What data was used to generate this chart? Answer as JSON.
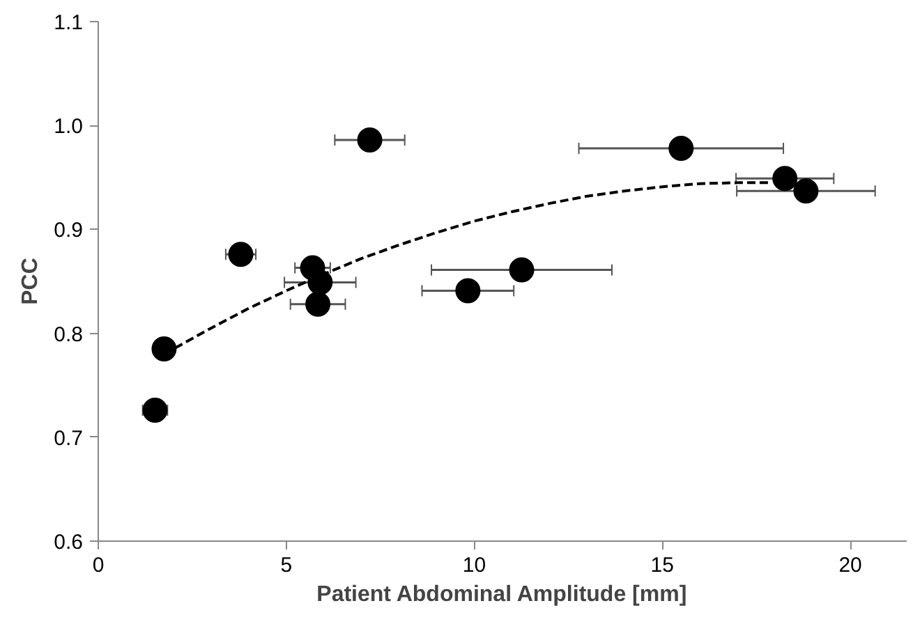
{
  "chart_data": {
    "type": "scatter",
    "xlabel": "Patient Abdominal Amplitude [mm]",
    "ylabel": "PCC",
    "xlim": [
      0,
      21.5
    ],
    "ylim": [
      0.6,
      1.1
    ],
    "xticks": [
      0,
      5,
      10,
      15,
      20
    ],
    "yticks": [
      {
        "value": 0.6,
        "label": "0.6"
      },
      {
        "value": 0.7,
        "label": "0.7"
      },
      {
        "value": 0.8,
        "label": "0.8"
      },
      {
        "value": 0.9,
        "label": "0.9"
      },
      {
        "value": 1.0,
        "label": "1.0"
      },
      {
        "value": 1.1,
        "label": "1.1"
      }
    ],
    "grid": false,
    "series": [
      {
        "color": "#000000",
        "marker": "circle",
        "x": [
          1.51,
          1.75,
          3.79,
          5.7,
          5.9,
          5.84,
          9.83,
          11.26,
          7.22,
          15.5,
          18.26,
          18.82
        ],
        "values": [
          0.726,
          0.785,
          0.876,
          0.863,
          0.849,
          0.828,
          0.841,
          0.861,
          0.986,
          0.978,
          0.949,
          0.937
        ],
        "xerrors": [
          0.33,
          0.15,
          0.4,
          0.47,
          0.95,
          0.73,
          1.22,
          2.4,
          0.93,
          2.72,
          1.3,
          1.84
        ]
      },
      {
        "type": "line",
        "color": "#000000",
        "line_style": "dashed",
        "x": [
          1.75,
          3,
          4,
          5,
          6,
          7,
          8,
          9,
          10,
          11,
          12,
          13,
          14,
          15,
          16,
          17,
          17.9
        ],
        "values": [
          0.78,
          0.805,
          0.824,
          0.841,
          0.857,
          0.872,
          0.885,
          0.897,
          0.908,
          0.917,
          0.925,
          0.932,
          0.937,
          0.941,
          0.944,
          0.945,
          0.945
        ]
      }
    ]
  }
}
